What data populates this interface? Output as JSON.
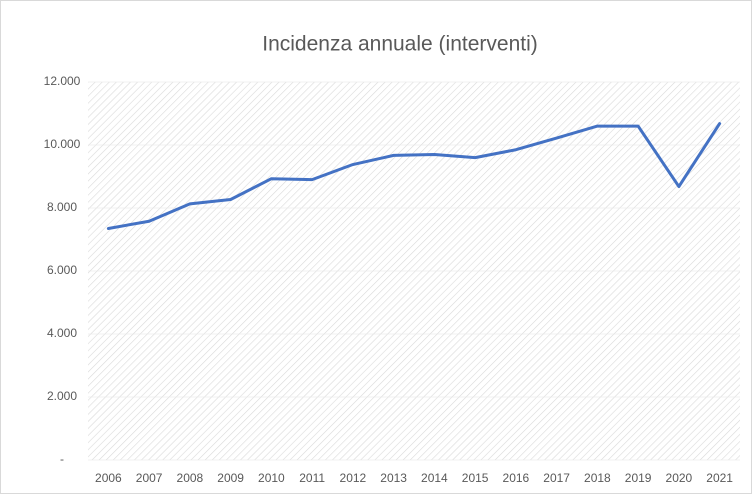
{
  "chart_data": {
    "type": "line",
    "title": "Incidenza annuale (interventi)",
    "categories": [
      "2006",
      "2007",
      "2008",
      "2009",
      "2010",
      "2011",
      "2012",
      "2013",
      "2014",
      "2015",
      "2016",
      "2017",
      "2018",
      "2019",
      "2020",
      "2021"
    ],
    "series": [
      {
        "name": "Interventi",
        "color": "#4472c4",
        "values": [
          7350,
          7580,
          8130,
          8270,
          8930,
          8900,
          9380,
          9670,
          9700,
          9600,
          9850,
          10220,
          10600,
          10600,
          8680,
          10680
        ]
      }
    ],
    "ylim": [
      0,
      12000
    ],
    "yticks": [
      {
        "value": 0,
        "label": "-"
      },
      {
        "value": 2000,
        "label": "2.000"
      },
      {
        "value": 4000,
        "label": "4.000"
      },
      {
        "value": 6000,
        "label": "6.000"
      },
      {
        "value": 8000,
        "label": "8.000"
      },
      {
        "value": 10000,
        "label": "10.000"
      },
      {
        "value": 12000,
        "label": "12.000"
      }
    ],
    "grid": true
  }
}
